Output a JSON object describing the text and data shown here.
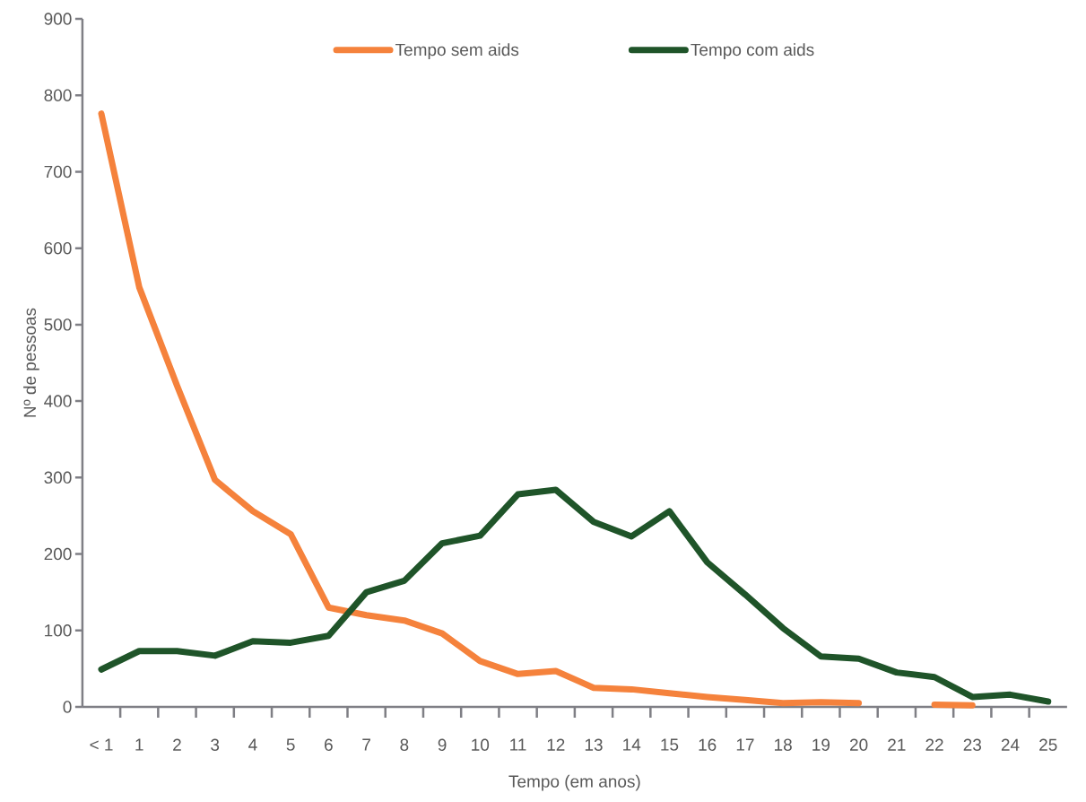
{
  "chart_data": {
    "type": "line",
    "xlabel": "Tempo (em anos)",
    "ylabel": "Nº de pessoas",
    "categories": [
      "< 1",
      "1",
      "2",
      "3",
      "4",
      "5",
      "6",
      "7",
      "8",
      "9",
      "10",
      "11",
      "12",
      "13",
      "14",
      "15",
      "16",
      "17",
      "18",
      "19",
      "20",
      "21",
      "22",
      "23",
      "24",
      "25"
    ],
    "series": [
      {
        "name": "Tempo sem aids",
        "color": "#f5823c",
        "values": [
          776,
          549,
          420,
          297,
          256,
          226,
          130,
          120,
          113,
          96,
          60,
          43,
          47,
          25,
          23,
          18,
          13,
          9,
          5,
          6,
          5,
          null,
          3,
          2,
          null,
          null
        ]
      },
      {
        "name": "Tempo com aids",
        "color": "#1f5429",
        "values": [
          49,
          73,
          73,
          67,
          86,
          84,
          93,
          150,
          165,
          214,
          224,
          278,
          284,
          242,
          223,
          256,
          189,
          147,
          103,
          66,
          63,
          45,
          39,
          13,
          16,
          7
        ]
      }
    ],
    "ylim": [
      0,
      900
    ],
    "yticks": [
      0,
      100,
      200,
      300,
      400,
      500,
      600,
      700,
      800,
      900
    ],
    "legend": "top"
  }
}
